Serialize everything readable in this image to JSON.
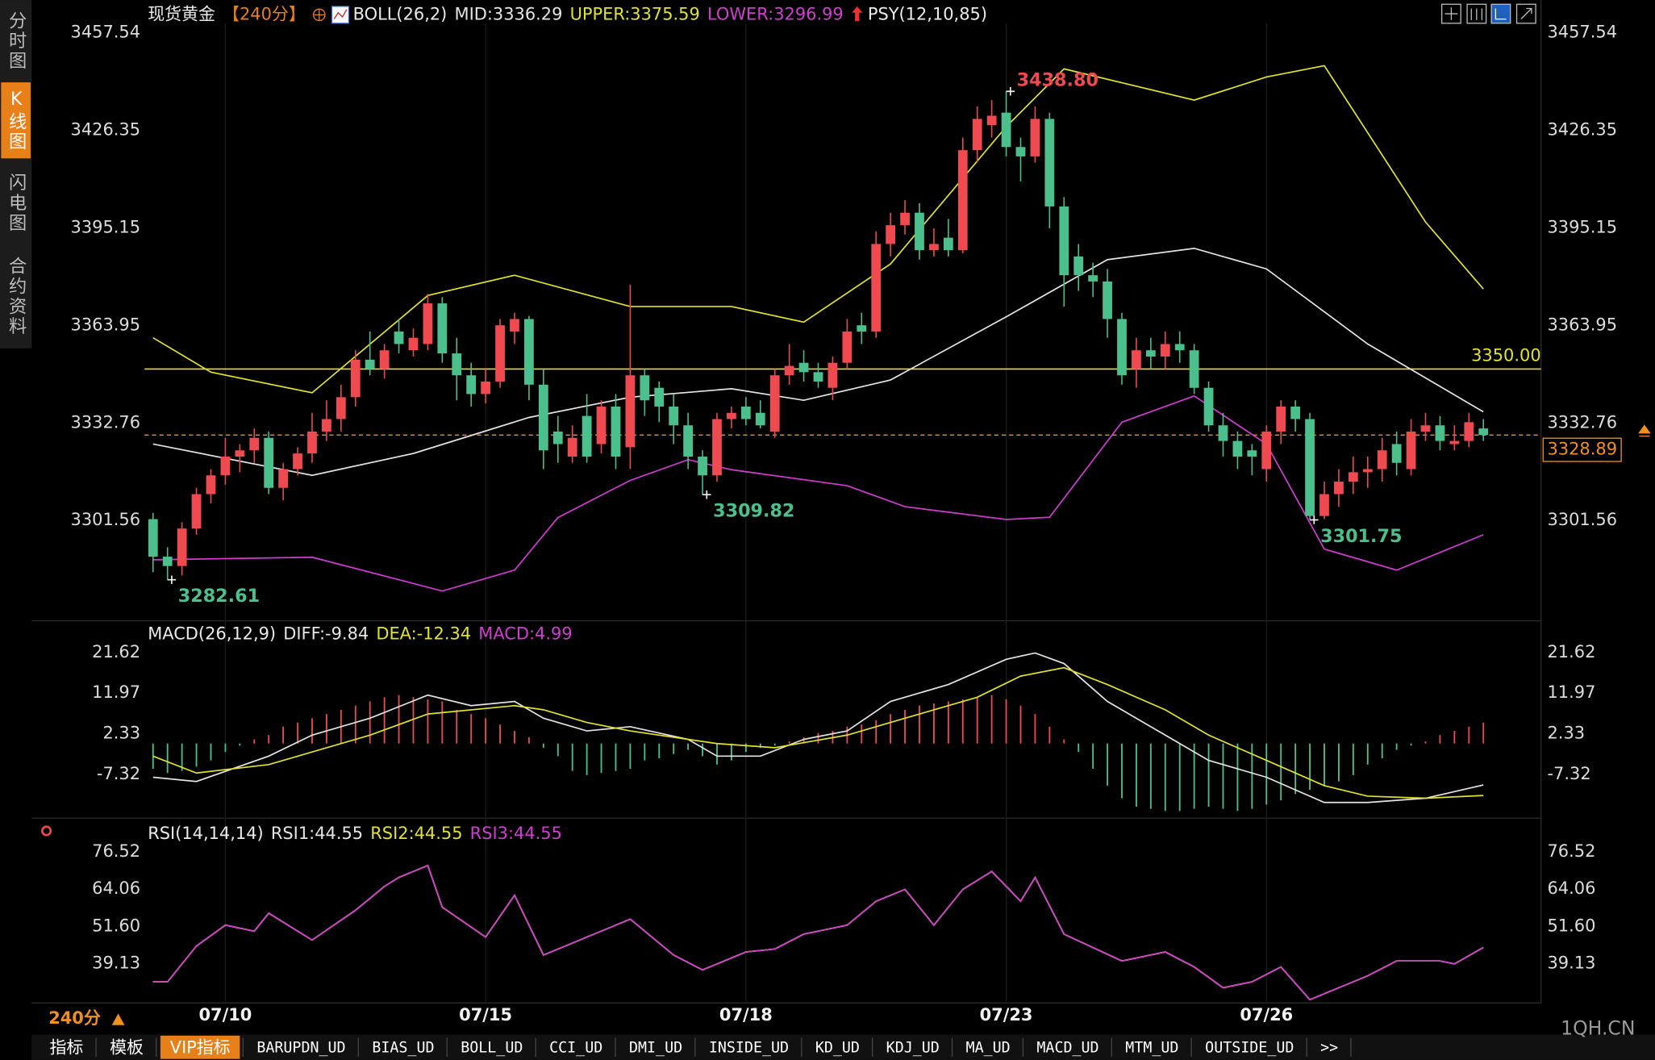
{
  "sidebar": [
    "分时图",
    "K线图",
    "闪电图",
    "合约资料"
  ],
  "sidebar_active": 1,
  "toolbar": {
    "period": "240分",
    "tabs": [
      "指标",
      "模板",
      "VIP指标",
      "BARUPDN_UD",
      "BIAS_UD",
      "BOLL_UD",
      "CCI_UD",
      "DMI_UD",
      "INSIDE_UD",
      "KD_UD",
      "KDJ_UD",
      "MA_UD",
      "MACD_UD",
      "MTM_UD",
      "OUTSIDE_UD",
      ">>"
    ],
    "active": 2
  },
  "watermark": "1QH.CN",
  "chart_data": [
    {
      "type": "candlestick",
      "title": "现货黄金",
      "period": "【240分】",
      "indicator": "BOLL(26,2)",
      "psy": "PSY(12,10,85)",
      "categories": [
        null,
        null,
        null,
        null,
        null,
        "07/10",
        null,
        null,
        null,
        null,
        null,
        null,
        null,
        null,
        null,
        null,
        null,
        null,
        null,
        null,
        null,
        null,
        null,
        "07/15",
        null,
        null,
        null,
        null,
        null,
        null,
        null,
        null,
        null,
        null,
        null,
        null,
        null,
        null,
        null,
        null,
        null,
        "07/18",
        null,
        null,
        null,
        null,
        null,
        null,
        null,
        null,
        null,
        null,
        null,
        null,
        null,
        null,
        null,
        null,
        null,
        "07/23",
        null,
        null,
        null,
        null,
        null,
        null,
        null,
        null,
        null,
        null,
        null,
        null,
        null,
        null,
        null,
        null,
        null,
        "07/26",
        null,
        null,
        null,
        null,
        null,
        null,
        null,
        null,
        null,
        null,
        null,
        null,
        null,
        null,
        null
      ],
      "open": [
        3302,
        3290,
        3287,
        3299,
        3310,
        3316,
        3322,
        3324,
        3328,
        3312,
        3318,
        3323,
        3330,
        3334,
        3341,
        3353,
        3350,
        3362,
        3356,
        3358,
        3371,
        3355,
        3348,
        3342,
        3346,
        3362,
        3366,
        3345,
        3330,
        3322,
        3335,
        3326,
        3338,
        3325,
        3348,
        3344,
        3338,
        3332,
        3322,
        3316,
        3334,
        3338,
        3336,
        3330,
        3348,
        3352,
        3349,
        3344,
        3352,
        3364,
        3362,
        3390,
        3396,
        3400,
        3388,
        3392,
        3388,
        3420,
        3428,
        3432,
        3421,
        3418,
        3430,
        3402,
        3386,
        3380,
        3378,
        3366,
        3350,
        3356,
        3354,
        3358,
        3356,
        3344,
        3332,
        3327,
        3324,
        3318,
        3330,
        3338,
        3334,
        3303,
        3310,
        3314,
        3317,
        3318,
        3326,
        3318,
        3330,
        3332,
        3326,
        3327,
        3331
      ],
      "high": [
        3304,
        3293,
        3301,
        3312,
        3318,
        3328,
        3326,
        3331,
        3330,
        3320,
        3325,
        3336,
        3340,
        3345,
        3356,
        3362,
        3358,
        3366,
        3363,
        3374,
        3373,
        3360,
        3352,
        3350,
        3366,
        3368,
        3367,
        3350,
        3335,
        3332,
        3342,
        3340,
        3342,
        3377,
        3350,
        3346,
        3342,
        3336,
        3324,
        3336,
        3338,
        3341,
        3340,
        3350,
        3358,
        3356,
        3352,
        3354,
        3366,
        3368,
        3394,
        3400,
        3404,
        3403,
        3395,
        3398,
        3424,
        3434,
        3436,
        3438.8,
        3424,
        3434,
        3432,
        3405,
        3390,
        3384,
        3382,
        3368,
        3360,
        3360,
        3362,
        3362,
        3358,
        3346,
        3336,
        3330,
        3326,
        3332,
        3340,
        3340,
        3336,
        3314,
        3318,
        3322,
        3322,
        3328,
        3330,
        3334,
        3336,
        3335,
        3332,
        3336,
        3334
      ],
      "low": [
        3285,
        3282.61,
        3284,
        3297,
        3307,
        3313,
        3317,
        3320,
        3310,
        3308,
        3316,
        3320,
        3327,
        3330,
        3338,
        3348,
        3347,
        3355,
        3354,
        3356,
        3352,
        3340,
        3338,
        3339,
        3344,
        3358,
        3340,
        3318,
        3320,
        3320,
        3320,
        3323,
        3318,
        3318,
        3335,
        3333,
        3326,
        3318,
        3309.82,
        3314,
        3331,
        3332,
        3331,
        3328,
        3345,
        3346,
        3344,
        3340,
        3350,
        3358,
        3360,
        3386,
        3393,
        3385,
        3386,
        3386,
        3387,
        3416,
        3424,
        3418,
        3410,
        3416,
        3395,
        3370,
        3375,
        3373,
        3360,
        3345,
        3344,
        3350,
        3350,
        3352,
        3342,
        3330,
        3322,
        3318,
        3316,
        3314,
        3326,
        3330,
        3301.75,
        3302,
        3306,
        3310,
        3312,
        3314,
        3316,
        3316,
        3327,
        3324,
        3324,
        3325,
        3327
      ],
      "close": [
        3290,
        3287,
        3299,
        3310,
        3316,
        3322,
        3324,
        3328,
        3312,
        3318,
        3323,
        3330,
        3334,
        3341,
        3353,
        3350,
        3356,
        3358,
        3360,
        3371,
        3355,
        3348,
        3342,
        3346,
        3364,
        3366,
        3345,
        3324,
        3326,
        3328,
        3322,
        3338,
        3322,
        3348,
        3340,
        3338,
        3332,
        3322,
        3316,
        3334,
        3336,
        3334,
        3332,
        3348,
        3351,
        3349,
        3346,
        3352,
        3362,
        3362,
        3390,
        3396,
        3400,
        3388,
        3390,
        3388,
        3420,
        3430,
        3431,
        3421,
        3418,
        3430,
        3402,
        3380,
        3380,
        3378,
        3366,
        3348,
        3356,
        3354,
        3358,
        3356,
        3344,
        3332,
        3327,
        3322,
        3322,
        3330,
        3338,
        3334,
        3303,
        3310,
        3314,
        3317,
        3318,
        3324,
        3320,
        3330,
        3332,
        3327,
        3327,
        3333,
        3328.89
      ],
      "up_color": "#ee4a50",
      "down_color": "#4cc08c",
      "ylim": [
        3270.5,
        3460.58
      ],
      "yticks": [
        3457.54,
        3426.35,
        3395.15,
        3363.95,
        3332.76,
        3301.56
      ],
      "series": [
        {
          "name": "MID:3336.29",
          "color": "#e4e4e4",
          "x": [
            0,
            11,
            18,
            26,
            33,
            40,
            45,
            51,
            59,
            66,
            72,
            77,
            84,
            92
          ],
          "values": [
            3326,
            3316,
            3323,
            3334.5,
            3341,
            3343.7,
            3340,
            3346.5,
            3366.7,
            3385,
            3388.6,
            3382,
            3358,
            3336.29
          ]
        },
        {
          "name": "UPPER:3375.59",
          "color": "#e2e22a",
          "x": [
            0,
            4,
            11,
            19,
            25,
            33,
            40,
            45,
            51,
            59,
            63,
            72,
            77,
            81,
            88,
            92
          ],
          "values": [
            3360,
            3349,
            3342.4,
            3373.5,
            3380,
            3370,
            3370,
            3365,
            3383.6,
            3427.5,
            3446,
            3436,
            3443.4,
            3447,
            3397,
            3375.59
          ]
        },
        {
          "name": "LOWER:3296.99",
          "color": "#d23cd2",
          "x": [
            0,
            11,
            20,
            25,
            28,
            33,
            37,
            40,
            48,
            52,
            59,
            62,
            67,
            72,
            77,
            81,
            86,
            92
          ],
          "values": [
            3289,
            3289.8,
            3279,
            3285.7,
            3302.5,
            3314.4,
            3321,
            3317.8,
            3312.7,
            3306,
            3301.9,
            3302.6,
            3333,
            3341.4,
            3326,
            3292.4,
            3285.7,
            3296.99
          ]
        }
      ],
      "hlines": [
        {
          "value": 3350,
          "label": "3350.00",
          "color": "#e2e22a"
        }
      ],
      "last_price": 3328.89,
      "last_color": "#f0901e",
      "annotations": [
        {
          "x": 59,
          "value": 3438.8,
          "label": "3438.80",
          "color": "#ee4a50",
          "position": "above"
        },
        {
          "x": 1,
          "value": 3282.61,
          "color": "#4cc08c",
          "position": "below"
        },
        {
          "x": 38,
          "value": 3309.82,
          "color": "#4cc08c",
          "position": "below"
        },
        {
          "x": 80,
          "value": 3301.75,
          "color": "#4cc08c",
          "position": "below"
        }
      ]
    },
    {
      "type": "macd",
      "title": "MACD(26,12,9)",
      "ylim": [
        -16.98,
        25.13
      ],
      "yticks": [
        21.62,
        11.97,
        2.33,
        -7.32
      ],
      "up_color": "#ee4a50",
      "down_color": "#4cc08c",
      "series": [
        {
          "name": "DIFF:-9.84",
          "color": "#e4e4e4",
          "x": [
            0,
            3,
            8,
            11,
            15,
            19,
            22,
            25,
            27,
            30,
            33,
            37,
            39,
            42,
            45,
            48,
            51,
            55,
            59,
            61,
            63,
            66,
            70,
            73,
            77,
            81,
            84,
            88,
            92
          ],
          "values": [
            -8,
            -9,
            -3,
            2,
            6,
            11.5,
            9,
            10,
            6,
            3,
            4,
            1,
            -3,
            -3,
            1,
            3,
            10,
            14,
            20,
            21.5,
            19,
            10,
            2,
            -4,
            -8,
            -14,
            -14,
            -13,
            -9.84
          ]
        },
        {
          "name": "DEA:-12.34",
          "color": "#e2e22a",
          "x": [
            0,
            3,
            8,
            15,
            19,
            25,
            27,
            30,
            33,
            39,
            43,
            48,
            52,
            57,
            60,
            63,
            66,
            70,
            73,
            77,
            81,
            84,
            88,
            92
          ],
          "values": [
            -3,
            -7,
            -5,
            2,
            7,
            9,
            8,
            5,
            3,
            0,
            -1,
            2,
            6,
            11,
            16,
            18,
            14,
            8,
            2,
            -4,
            -10,
            -12.5,
            -13,
            -12.34
          ]
        }
      ],
      "histogram": {
        "name": "MACD:4.99",
        "color": "#d23cd2",
        "values": [
          -6,
          -7,
          -6.5,
          -5.5,
          -4,
          -2,
          -0.5,
          1,
          2,
          4,
          5,
          6,
          7,
          8,
          9,
          10,
          11,
          11.5,
          11,
          10.5,
          10,
          8,
          7,
          6,
          4.5,
          3,
          1.5,
          -1,
          -3,
          -6.5,
          -7.5,
          -7,
          -6.5,
          -6,
          -4,
          -3.5,
          -2.5,
          -1.5,
          -3,
          -5,
          -4,
          -2,
          -1,
          -0.5,
          0.5,
          1.5,
          2.5,
          3,
          4,
          4.5,
          5.5,
          7,
          8,
          9,
          9.5,
          10,
          10.5,
          11,
          11.5,
          10.5,
          9,
          7,
          4,
          1,
          -2,
          -6,
          -10,
          -13,
          -15,
          -15.5,
          -16,
          -16,
          -15.5,
          -15,
          -15.5,
          -16,
          -15.5,
          -14.5,
          -13.5,
          -12,
          -11,
          -10,
          -9,
          -7.5,
          -5,
          -3.5,
          -1.5,
          -0.5,
          0.5,
          2,
          3,
          4,
          4.99
        ]
      }
    },
    {
      "type": "line",
      "title": "RSI(14,14,14)",
      "ylim": [
        25.92,
        80.77
      ],
      "yticks": [
        76.52,
        64.06,
        {
          "value": 51.6,
          "label": "51.60"
        },
        39.13
      ],
      "series": [
        {
          "name": "RSI1:44.55",
          "color": "#e4e4e4",
          "x": [
            0,
            1,
            3,
            5,
            7,
            8,
            11,
            14,
            16,
            17,
            19,
            20,
            23,
            25,
            27,
            30,
            33,
            36,
            38,
            41,
            43,
            45,
            48,
            50,
            52,
            54,
            56,
            58,
            60,
            61,
            63,
            67,
            70,
            72,
            74,
            76,
            78,
            80,
            84,
            86,
            89,
            90,
            92
          ],
          "values": [
            33,
            33,
            45,
            52,
            50,
            56,
            47,
            57,
            65,
            68,
            72,
            58,
            48,
            62,
            42,
            48,
            54,
            42,
            37,
            43,
            44,
            49,
            52,
            60,
            64,
            52,
            64,
            70,
            60,
            68,
            49,
            40,
            43,
            38,
            31,
            33,
            38,
            27,
            35,
            40,
            40,
            39,
            44.55
          ]
        },
        {
          "name": "RSI2:44.55",
          "color": "#e2e22a",
          "x": [
            0,
            1,
            3,
            5,
            7,
            8,
            11,
            14,
            16,
            17,
            19,
            20,
            23,
            25,
            27,
            30,
            33,
            36,
            38,
            41,
            43,
            45,
            48,
            50,
            52,
            54,
            56,
            58,
            60,
            61,
            63,
            67,
            70,
            72,
            74,
            76,
            78,
            80,
            84,
            86,
            89,
            90,
            92
          ],
          "values": [
            33,
            33,
            45,
            52,
            50,
            56,
            47,
            57,
            65,
            68,
            72,
            58,
            48,
            62,
            42,
            48,
            54,
            42,
            37,
            43,
            44,
            49,
            52,
            60,
            64,
            52,
            64,
            70,
            60,
            68,
            49,
            40,
            43,
            38,
            31,
            33,
            38,
            27,
            35,
            40,
            40,
            39,
            44.55
          ]
        },
        {
          "name": "RSI3:44.55",
          "color": "#d23cd2",
          "x": [
            0,
            1,
            3,
            5,
            7,
            8,
            11,
            14,
            16,
            17,
            19,
            20,
            23,
            25,
            27,
            30,
            33,
            36,
            38,
            41,
            43,
            45,
            48,
            50,
            52,
            54,
            56,
            58,
            60,
            61,
            63,
            67,
            70,
            72,
            74,
            76,
            78,
            80,
            84,
            86,
            89,
            90,
            92
          ],
          "values": [
            33,
            33,
            45,
            52,
            50,
            56,
            47,
            57,
            65,
            68,
            72,
            58,
            48,
            62,
            42,
            48,
            54,
            42,
            37,
            43,
            44,
            49,
            52,
            60,
            64,
            52,
            64,
            70,
            60,
            68,
            49,
            40,
            43,
            38,
            31,
            33,
            38,
            27,
            35,
            40,
            40,
            39,
            44.55
          ]
        }
      ]
    }
  ]
}
